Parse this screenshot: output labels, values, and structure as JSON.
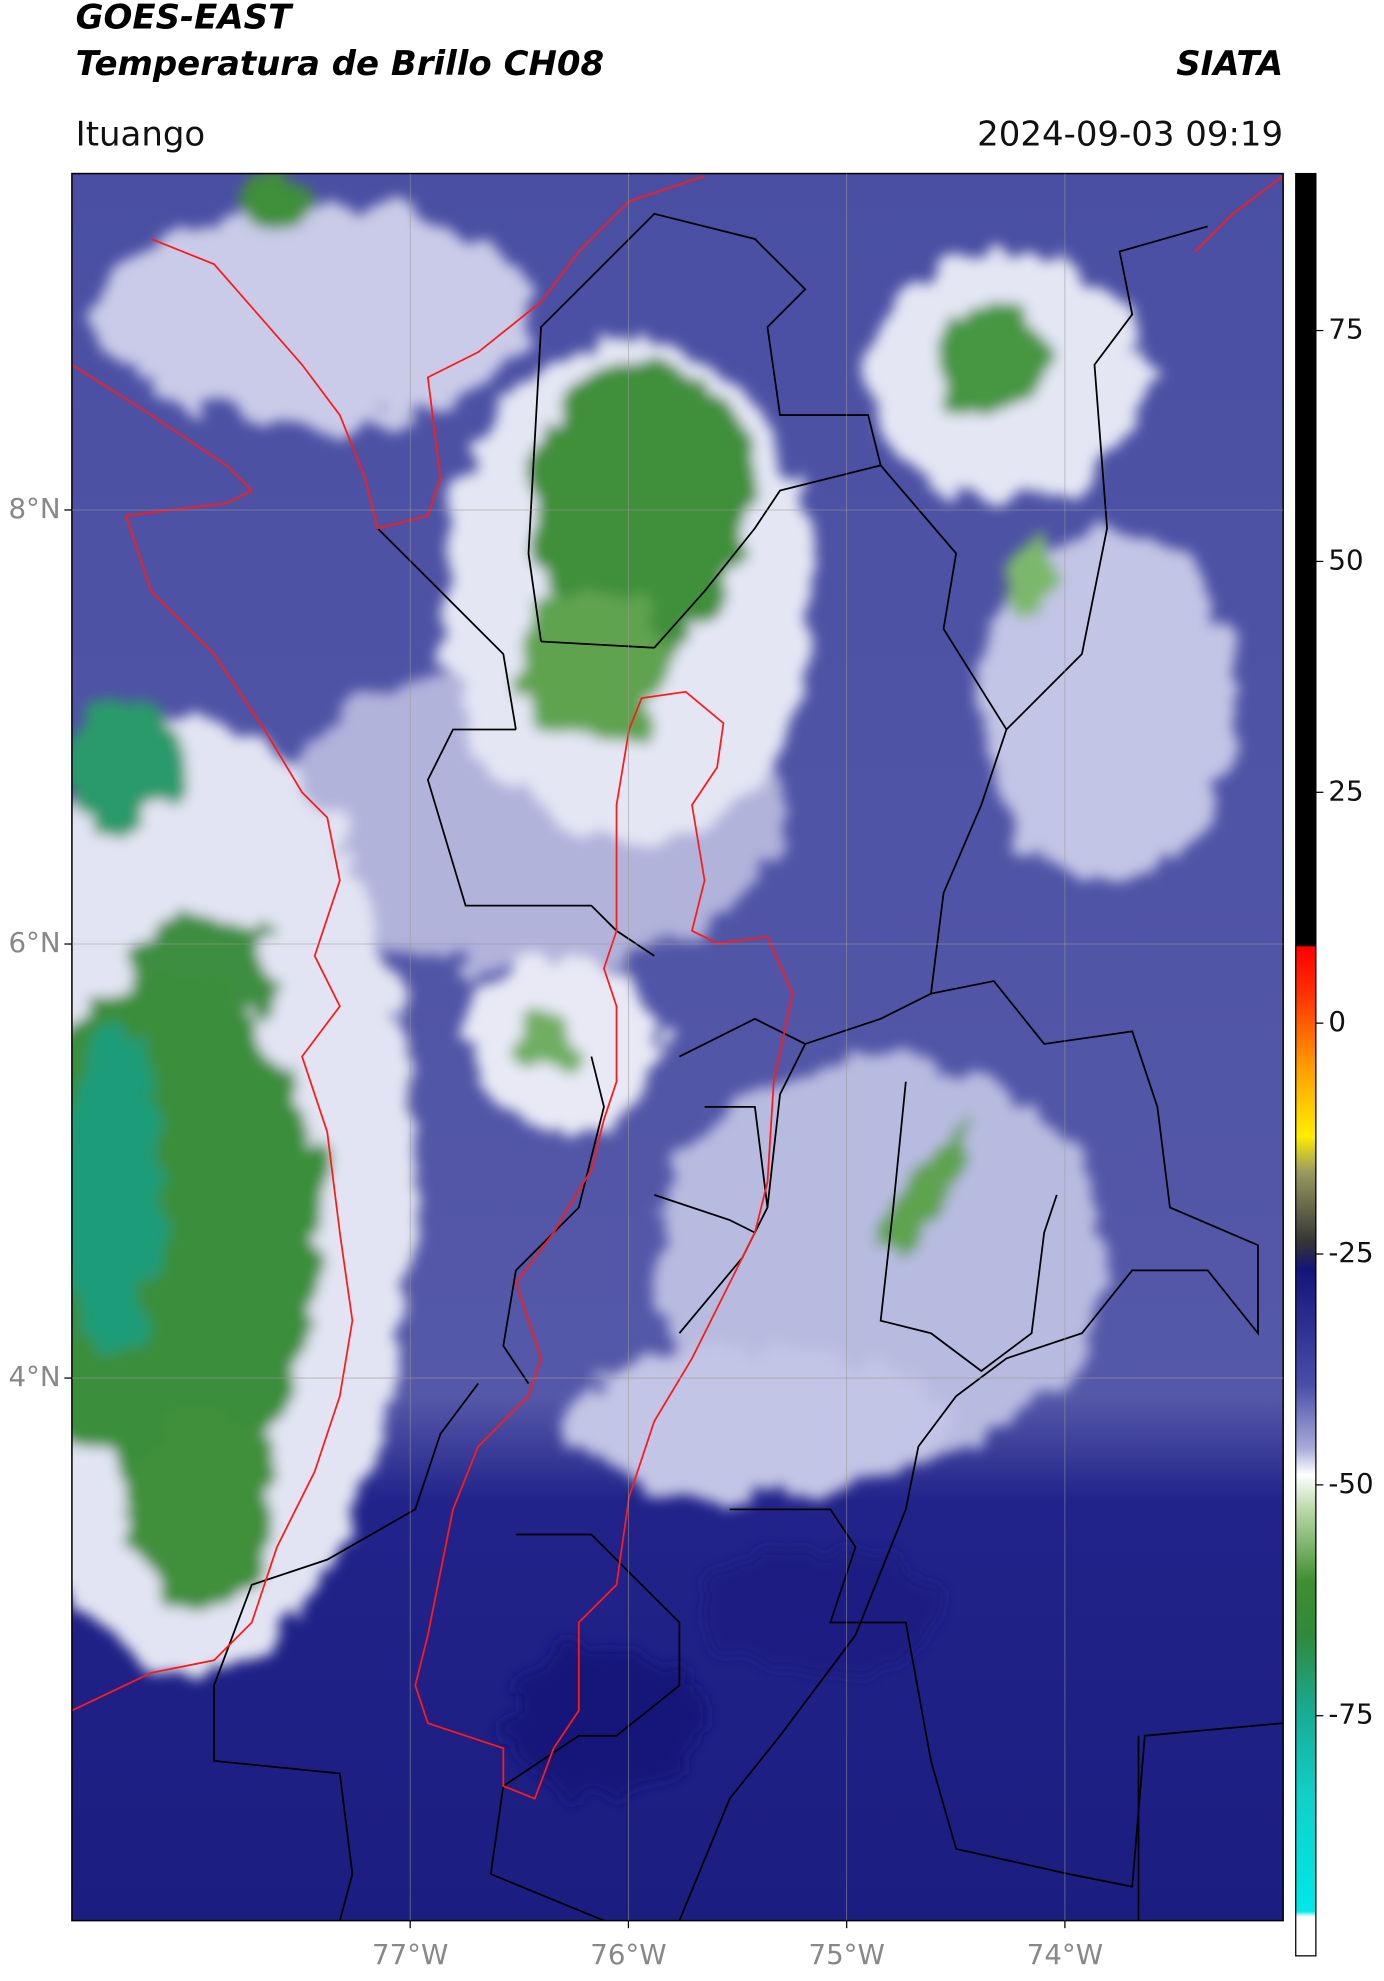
{
  "header": {
    "title": "GOES-EAST",
    "subtitle": "Temperatura de Brillo CH08",
    "organization": "SIATA",
    "location": "Ituango",
    "timestamp": "2024-09-03 09:19"
  },
  "chart_data": {
    "type": "map",
    "xlim": [
      -78.55,
      -73.0
    ],
    "ylim": [
      1.5,
      9.55
    ],
    "xticks": [
      {
        "value": -77,
        "label": "77°W"
      },
      {
        "value": -76,
        "label": "76°W"
      },
      {
        "value": -75,
        "label": "75°W"
      },
      {
        "value": -74,
        "label": "74°W"
      }
    ],
    "yticks": [
      {
        "value": 4,
        "label": "4°N"
      },
      {
        "value": 6,
        "label": "6°N"
      },
      {
        "value": 8,
        "label": "8°N"
      }
    ],
    "grid": true,
    "colorbar": {
      "lim": [
        -101,
        92
      ],
      "ticks": [
        -75,
        -50,
        -25,
        0,
        25,
        50,
        75
      ]
    }
  }
}
